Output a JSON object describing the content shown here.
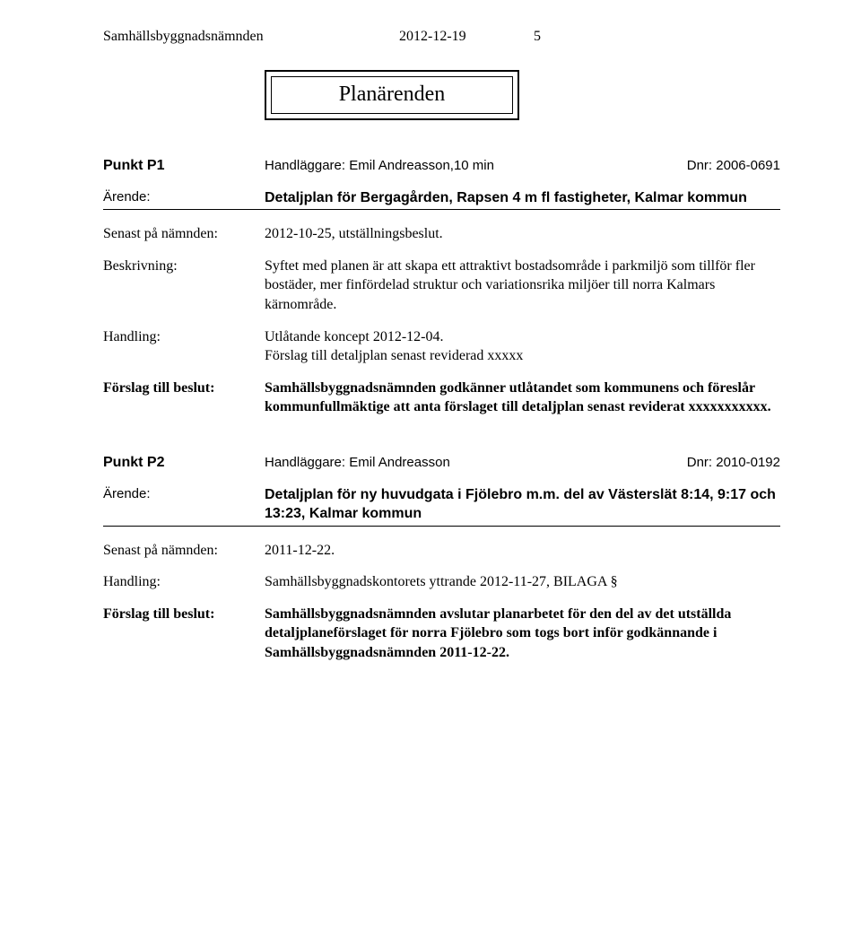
{
  "header": {
    "org": "Samhällsbyggnadsnämnden",
    "date": "2012-12-19",
    "page": "5"
  },
  "section_title": "Planärenden",
  "cases": [
    {
      "punkt_label": "Punkt P1",
      "handler_prefix": "Handläggare: ",
      "handler": "Emil Andreasson,10 min",
      "dnr_prefix": "Dnr: ",
      "dnr": "2006-0691",
      "rows": [
        {
          "label": "Ärende:",
          "label_style": "sans",
          "value": "Detaljplan för Bergagården, Rapsen 4 m fl fastigheter, Kalmar kommun",
          "style": "title",
          "underline_after": true
        },
        {
          "label": "Senast på nämnden:",
          "label_style": "serif",
          "value": "2012-10-25, utställningsbeslut.",
          "style": "serif"
        },
        {
          "label": "Beskrivning:",
          "label_style": "serif",
          "value": "Syftet med planen är att skapa ett attraktivt bostadsområde i parkmiljö som tillför fler bostäder, mer finfördelad struktur och variationsrika miljöer till norra Kalmars kärnområde.",
          "style": "serif"
        },
        {
          "label": "Handling:",
          "label_style": "serif",
          "value": "Utlåtande koncept 2012-12-04.\nFörslag till detaljplan senast reviderad xxxxx",
          "style": "serif"
        },
        {
          "label": "Förslag till beslut:",
          "label_style": "serif-bold",
          "value": "Samhällsbyggnadsnämnden godkänner utlåtandet som kommunens och föreslår kommunfullmäktige att anta förslaget till detaljplan senast reviderat xxxxxxxxxxx.",
          "style": "serif-bold"
        }
      ]
    },
    {
      "punkt_label": "Punkt P2",
      "handler_prefix": "Handläggare: ",
      "handler": "Emil Andreasson",
      "dnr_prefix": "Dnr: ",
      "dnr": "2010-0192",
      "rows": [
        {
          "label": "Ärende:",
          "label_style": "sans",
          "value": "Detaljplan för ny huvudgata i Fjölebro m.m. del av Västerslät 8:14, 9:17 och 13:23, Kalmar kommun",
          "style": "title",
          "underline_after": true
        },
        {
          "label": "Senast på nämnden:",
          "label_style": "serif",
          "value": "2011-12-22.",
          "style": "serif"
        },
        {
          "label": "Handling:",
          "label_style": "serif",
          "value": "Samhällsbyggnadskontorets yttrande 2012-11-27,  BILAGA §",
          "style": "serif"
        },
        {
          "label": "Förslag till beslut:",
          "label_style": "serif-bold",
          "value": "Samhällsbyggnadsnämnden avslutar planarbetet för den del av det utställda detaljplaneförslaget för norra Fjölebro som togs bort inför godkännande i Samhällsbyggnadsnämnden 2011-12-22.",
          "style": "serif-bold"
        }
      ]
    }
  ]
}
